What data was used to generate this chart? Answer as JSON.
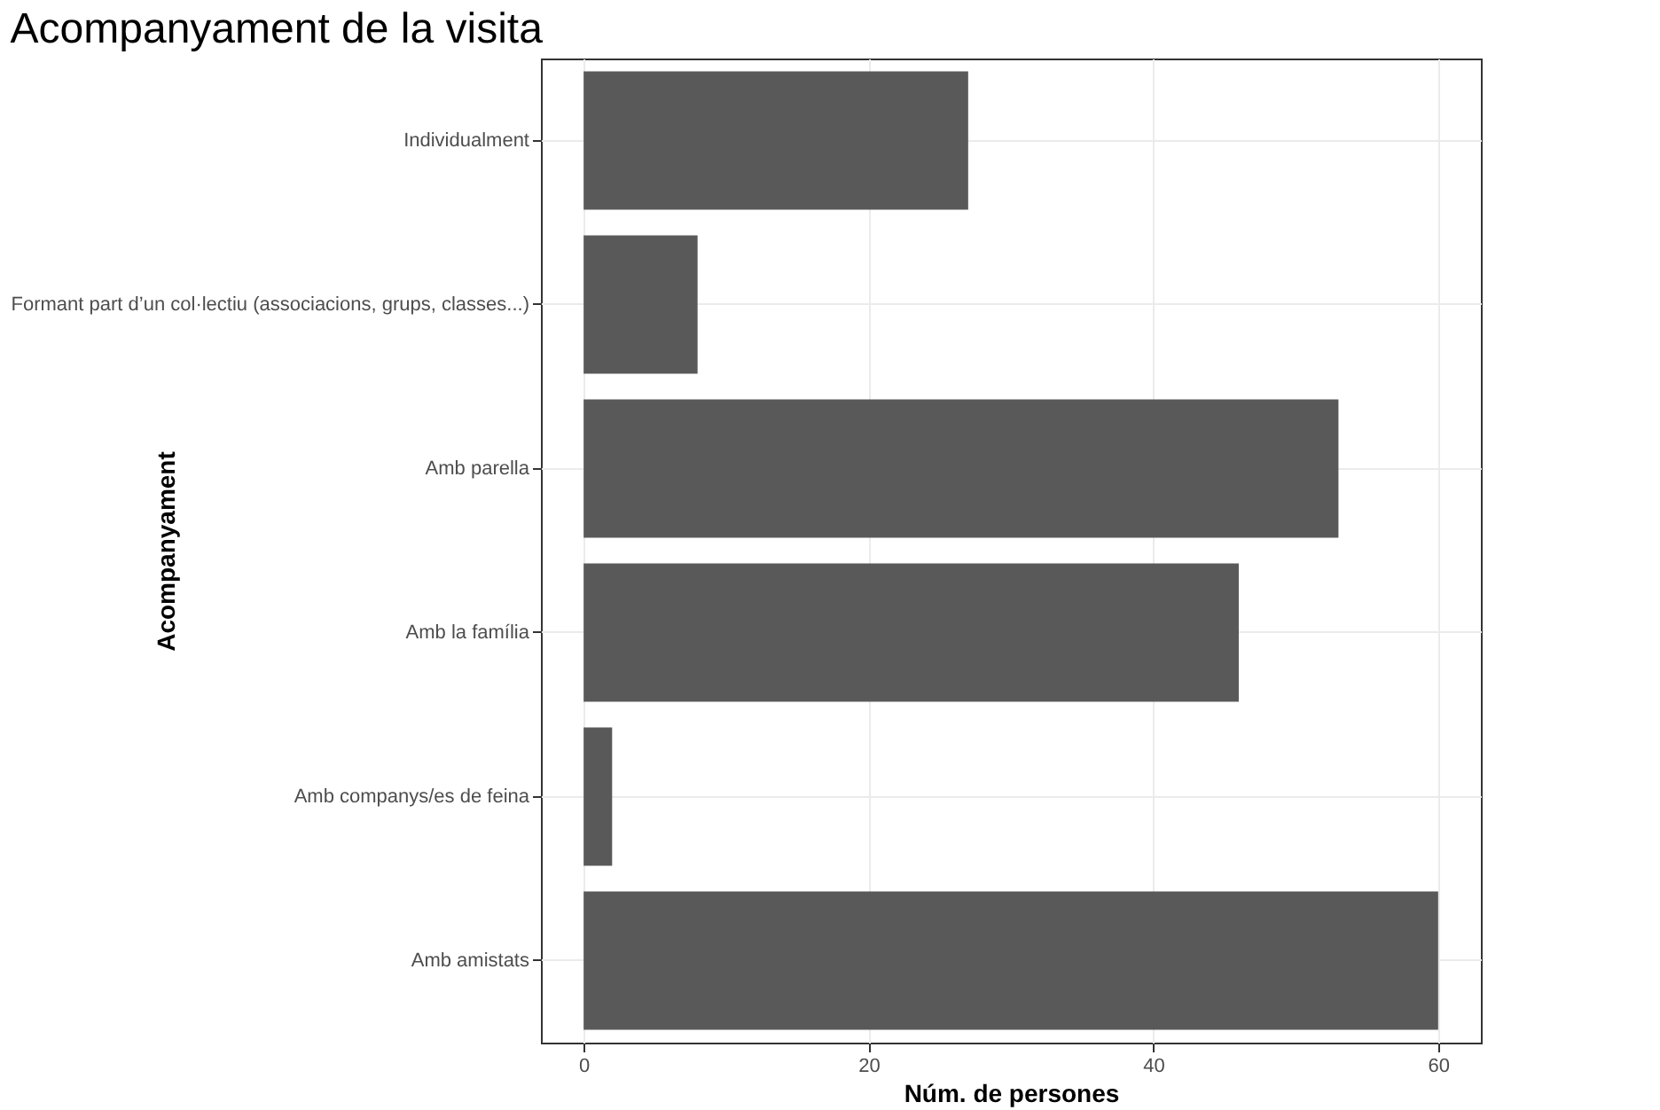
{
  "chart_data": {
    "type": "bar",
    "orientation": "horizontal",
    "title": "Acompanyament de la visita",
    "xlabel": "Núm. de persones",
    "ylabel": "Acompanyament",
    "categories": [
      "Individualment",
      "Formant part d’un col·lectiu (associacions, grups, classes...)",
      "Amb parella",
      "Amb la família",
      "Amb companys/es de feina",
      "Amb amistats"
    ],
    "values": [
      27,
      8,
      53,
      46,
      2,
      60
    ],
    "color": "#595959",
    "xlim": [
      -3,
      63
    ],
    "xticks": [
      0,
      20,
      40,
      60
    ],
    "grid": true
  }
}
